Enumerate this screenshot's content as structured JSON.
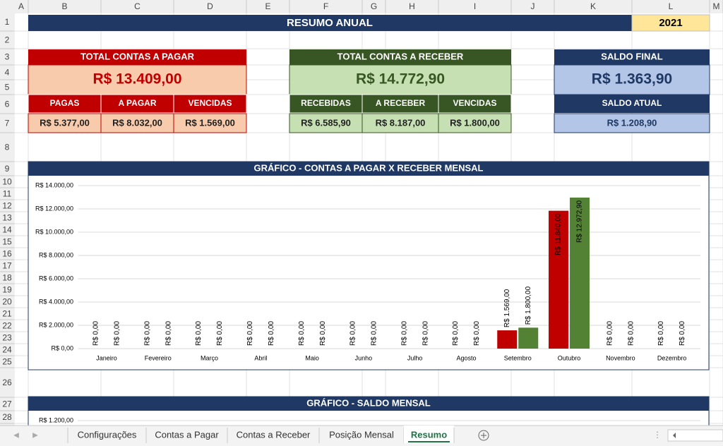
{
  "sheet": {
    "column_headers": [
      "A",
      "B",
      "C",
      "D",
      "E",
      "F",
      "G",
      "H",
      "I",
      "J",
      "K",
      "L",
      "M"
    ],
    "row_headers": [
      "1",
      "2",
      "3",
      "4",
      "5",
      "6",
      "7",
      "8",
      "9",
      "10",
      "11",
      "12",
      "13",
      "14",
      "15",
      "16",
      "17",
      "18",
      "19",
      "20",
      "21",
      "22",
      "23",
      "24",
      "25",
      "26",
      "27",
      "28"
    ]
  },
  "header": {
    "title": "RESUMO ANUAL",
    "year": "2021"
  },
  "pagar": {
    "title": "TOTAL CONTAS A PAGAR",
    "total": "R$ 13.409,00",
    "labels": [
      "PAGAS",
      "A PAGAR",
      "VENCIDAS"
    ],
    "values": [
      "R$ 5.377,00",
      "R$ 8.032,00",
      "R$ 1.569,00"
    ]
  },
  "receber": {
    "title": "TOTAL CONTAS A RECEBER",
    "total": "R$ 14.772,90",
    "labels": [
      "RECEBIDAS",
      "A RECEBER",
      "VENCIDAS"
    ],
    "values": [
      "R$ 6.585,90",
      "R$ 8.187,00",
      "R$ 1.800,00"
    ]
  },
  "saldo": {
    "title": "SALDO FINAL",
    "total": "R$ 1.363,90",
    "sub_title": "SALDO ATUAL",
    "sub_value": "R$ 1.208,90"
  },
  "chart1": {
    "type": "bar",
    "title": "GRÁFICO - CONTAS A PAGAR X RECEBER MENSAL",
    "categories": [
      "Janeiro",
      "Fevereiro",
      "Março",
      "Abril",
      "Maio",
      "Junho",
      "Julho",
      "Agosto",
      "Setembro",
      "Outubro",
      "Novembro",
      "Dezembro"
    ],
    "series": [
      {
        "color": "#c00000",
        "values": [
          0,
          0,
          0,
          0,
          0,
          0,
          0,
          0,
          1569,
          11840,
          0,
          0
        ],
        "value_labels": [
          "R$ 0,00",
          "R$ 0,00",
          "R$ 0,00",
          "R$ 0,00",
          "R$ 0,00",
          "R$ 0,00",
          "R$ 0,00",
          "R$ 0,00",
          "R$ 1.569,00",
          "R$ 11.840,00",
          "R$ 0,00",
          "R$ 0,00"
        ]
      },
      {
        "color": "#548235",
        "values": [
          0,
          0,
          0,
          0,
          0,
          0,
          0,
          0,
          1800,
          12972.9,
          0,
          0
        ],
        "value_labels": [
          "R$ 0,00",
          "R$ 0,00",
          "R$ 0,00",
          "R$ 0,00",
          "R$ 0,00",
          "R$ 0,00",
          "R$ 0,00",
          "R$ 0,00",
          "R$ 1.800,00",
          "R$ 12.972,90",
          "R$ 0,00",
          "R$ 0,00"
        ]
      }
    ],
    "ylim": [
      0,
      14000
    ],
    "yticks": [
      {
        "value": 0,
        "label": "R$ 0,00"
      },
      {
        "value": 2000,
        "label": "R$ 2.000,00"
      },
      {
        "value": 4000,
        "label": "R$ 4.000,00"
      },
      {
        "value": 6000,
        "label": "R$ 6.000,00"
      },
      {
        "value": 8000,
        "label": "R$ 8.000,00"
      },
      {
        "value": 10000,
        "label": "R$ 10.000,00"
      },
      {
        "value": 12000,
        "label": "R$ 12.000,00"
      },
      {
        "value": 14000,
        "label": "R$ 14.000,00"
      }
    ],
    "grid": true
  },
  "chart2": {
    "title": "GRÁFICO - SALDO MENSAL",
    "yticks": [
      {
        "value": 1200,
        "label": "R$ 1.200,00"
      }
    ]
  },
  "tabs": {
    "items": [
      "Configurações",
      "Contas a Pagar",
      "Contas a Receber",
      "Posição Mensal",
      "Resumo"
    ],
    "active": 4
  }
}
